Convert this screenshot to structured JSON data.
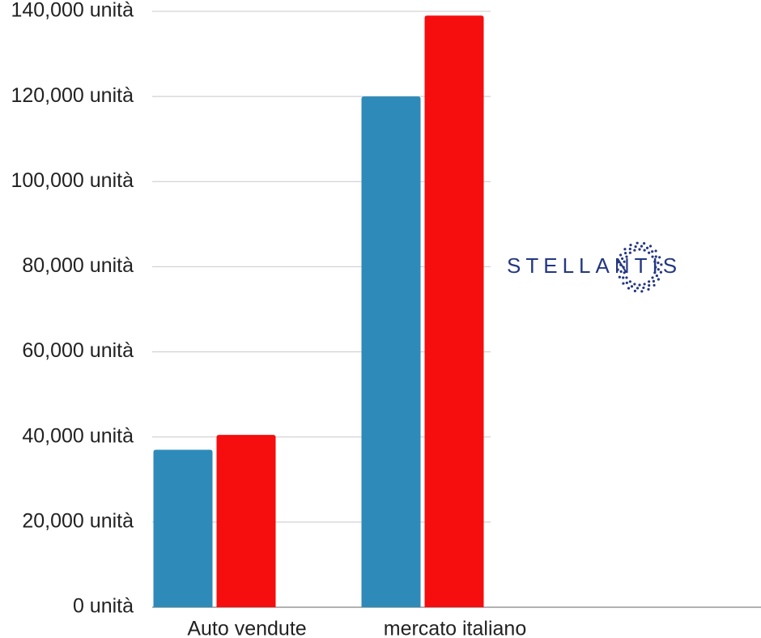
{
  "chart_data": {
    "type": "bar",
    "categories": [
      "Auto vendute",
      "mercato italiano"
    ],
    "series": [
      {
        "color": "#2e8bb9",
        "values": [
          37000,
          120000
        ]
      },
      {
        "color": "#f60d0d",
        "values": [
          40500,
          139000
        ]
      }
    ],
    "ylim": [
      0,
      140000
    ],
    "yticks": [
      {
        "value": 0,
        "label": "0 unità"
      },
      {
        "value": 20000,
        "label": "20,000 unità"
      },
      {
        "value": 40000,
        "label": "40,000 unità"
      },
      {
        "value": 60000,
        "label": "60,000 unità"
      },
      {
        "value": 80000,
        "label": "80,000 unità"
      },
      {
        "value": 100000,
        "label": "100,000 unità"
      },
      {
        "value": 120000,
        "label": "120,000 unità"
      },
      {
        "value": 140000,
        "label": "140,000 unità"
      }
    ],
    "grid": true,
    "logo": "STELLANTIS"
  }
}
